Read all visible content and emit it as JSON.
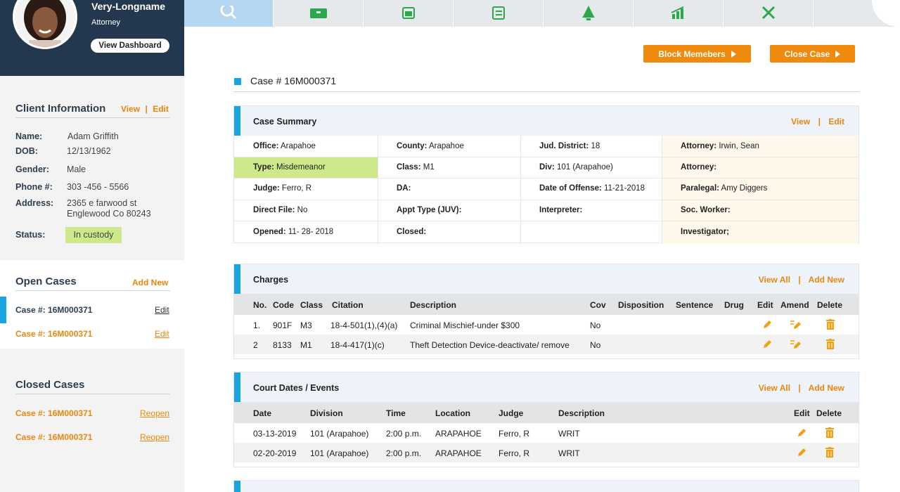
{
  "user": {
    "name": "Very-Longname",
    "role": "Attorney",
    "dashboard_label": "View Dashboard"
  },
  "client_info": {
    "title": "Client Information",
    "view_label": "View",
    "edit_label": "Edit",
    "link_sep": "|",
    "fields": [
      {
        "label": "Name:",
        "value": "Adam Griffith"
      },
      {
        "label": "DOB:",
        "value": "12/13/1962"
      },
      {
        "label": "Gender:",
        "value": "Male"
      },
      {
        "label": "Phone #:",
        "value": "303 -456 - 5566"
      },
      {
        "label": "Address:",
        "value": "2365 e farwood st",
        "value2": "Englewood Co 80243"
      }
    ],
    "status_label": "Status:",
    "status_value": "In custody"
  },
  "open_cases": {
    "title": "Open Cases",
    "add_label": "Add New",
    "items": [
      {
        "label": "Case #: 16M000371",
        "action": "Edit"
      },
      {
        "label": "Case #: 16M000371",
        "action": "Edit"
      }
    ]
  },
  "closed_cases": {
    "title": "Closed Cases",
    "items": [
      {
        "label": "Case #: 16M000371",
        "action": "Reopen"
      },
      {
        "label": "Case #: 16M000371",
        "action": "Reopen"
      }
    ]
  },
  "nav_tabs": [
    {
      "icon": "search-icon",
      "active": true
    },
    {
      "icon": "briefcase-icon"
    },
    {
      "icon": "calendar-icon"
    },
    {
      "icon": "checklist-icon"
    },
    {
      "icon": "bell-icon"
    },
    {
      "icon": "bar-chart-icon"
    },
    {
      "icon": "tools-icon"
    },
    {
      "icon": "blank"
    }
  ],
  "actions": {
    "block_members": "Block Memebers",
    "close_case": "Close Case"
  },
  "case": {
    "title": "Case # 16M000371"
  },
  "case_summary": {
    "title": "Case Summary",
    "view_label": "View",
    "edit_label": "Edit",
    "link_sep": "|",
    "rows": [
      [
        {
          "label": "Office:",
          "value": "Arapahoe"
        },
        {
          "label": "County:",
          "value": "Arapahoe"
        },
        {
          "label": "Jud. District:",
          "value": "18"
        },
        {
          "label": "Attorney:",
          "value": "Irwin, Sean"
        }
      ],
      [
        {
          "label": "Type:",
          "value": "Misdemeanor"
        },
        {
          "label": "Class:",
          "value": "M1"
        },
        {
          "label": "Div:",
          "value": "101 (Arapahoe)"
        },
        {
          "label": "Attorney:",
          "value": ""
        }
      ],
      [
        {
          "label": "Judge:",
          "value": "Ferro, R"
        },
        {
          "label": "DA:",
          "value": ""
        },
        {
          "label": "Date of Offense:",
          "value": "11-21-2018"
        },
        {
          "label": "Paralegal:",
          "value": "Amy Diggers"
        }
      ],
      [
        {
          "label": "Direct File:",
          "value": "No"
        },
        {
          "label": "Appt Type (JUV):",
          "value": ""
        },
        {
          "label": "Interpreter:",
          "value": ""
        },
        {
          "label": "Soc. Worker:",
          "value": ""
        }
      ],
      [
        {
          "label": "Opened:",
          "value": "11- 28- 2018"
        },
        {
          "label": "Closed:",
          "value": ""
        },
        {
          "label": "",
          "value": ""
        },
        {
          "label": "Investigator;",
          "value": ""
        }
      ]
    ]
  },
  "charges": {
    "title": "Charges",
    "view_all_label": "View All",
    "add_label": "Add New",
    "link_sep": "|",
    "columns": [
      "No.",
      "Code",
      "Class",
      "Citation",
      "Description",
      "Cov",
      "Disposition",
      "Sentence",
      "Drug",
      "Edit",
      "Amend",
      "Delete"
    ],
    "rows": [
      {
        "no": "1.",
        "code": "901F",
        "class": "M3",
        "citation": "18-4-501(1),(4)(a)",
        "description": "Criminal Mischief-under $300",
        "cov": "No"
      },
      {
        "no": "2",
        "code": "8133",
        "class": "M1",
        "citation": "18-4-417(1)(c)",
        "description": "Theft Detection Device-deactivate/ remove",
        "cov": "No"
      }
    ]
  },
  "court_dates": {
    "title": "Court Dates / Events",
    "view_all_label": "View All",
    "add_label": "Add New",
    "link_sep": "|",
    "columns": [
      "Date",
      "Division",
      "Time",
      "Location",
      "Judge",
      "Description",
      "Edit",
      "Delete"
    ],
    "rows": [
      {
        "date": "03-13-2019",
        "division": "101 (Arapahoe)",
        "time": "2:00 p.m.",
        "location": "ARAPAHOE",
        "judge": "Ferro, R",
        "description": "WRIT"
      },
      {
        "date": "02-20-2019",
        "division": "101 (Arapahoe)",
        "time": "2:00 p.m.",
        "location": "ARAPAHOE",
        "judge": "Ferro, R",
        "description": "WRIT"
      }
    ]
  },
  "colors": {
    "accent": "#1aa4df",
    "orange": "#ef8a0c",
    "navy": "#23384f",
    "status_green": "#cde98a"
  }
}
